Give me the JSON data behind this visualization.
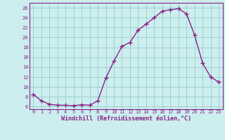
{
  "x": [
    0,
    1,
    2,
    3,
    4,
    5,
    6,
    7,
    8,
    9,
    10,
    11,
    12,
    13,
    14,
    15,
    16,
    17,
    18,
    19,
    20,
    21,
    22,
    23
  ],
  "y": [
    8.5,
    7.2,
    6.5,
    6.3,
    6.3,
    6.2,
    6.4,
    6.3,
    7.2,
    11.8,
    15.2,
    18.2,
    19.0,
    21.5,
    22.7,
    24.0,
    25.3,
    25.6,
    25.8,
    24.8,
    20.5,
    14.8,
    12.0,
    11.0
  ],
  "line_color": "#882288",
  "marker": "+",
  "bg_color": "#cceeee",
  "grid_color": "#99cccc",
  "xlabel": "Windchill (Refroidissement éolien,°C)",
  "ylim": [
    5.5,
    27
  ],
  "xlim": [
    -0.5,
    23.5
  ],
  "yticks": [
    6,
    8,
    10,
    12,
    14,
    16,
    18,
    20,
    22,
    24,
    26
  ],
  "xticks": [
    0,
    1,
    2,
    3,
    4,
    5,
    6,
    7,
    8,
    9,
    10,
    11,
    12,
    13,
    14,
    15,
    16,
    17,
    18,
    19,
    20,
    21,
    22,
    23
  ],
  "label_color": "#882288",
  "font_family": "monospace",
  "ylabel_fontsize": 5.0,
  "xlabel_fontsize": 6.0,
  "tick_fontsize": 5.0,
  "line_width": 1.0,
  "marker_size": 4.0
}
